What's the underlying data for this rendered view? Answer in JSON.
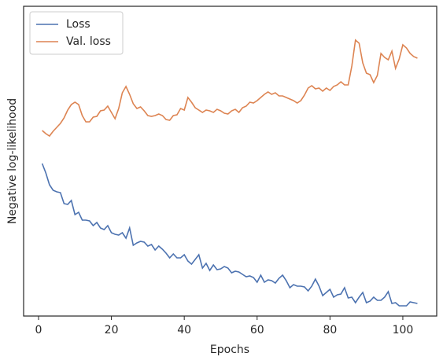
{
  "chart_data": {
    "type": "line",
    "x_label": "Epochs",
    "y_label": "Negative log-likelihood",
    "x": [
      1,
      2,
      3,
      4,
      5,
      6,
      7,
      8,
      9,
      10,
      11,
      12,
      13,
      14,
      15,
      16,
      17,
      18,
      19,
      20,
      21,
      22,
      23,
      24,
      25,
      26,
      27,
      28,
      29,
      30,
      31,
      32,
      33,
      34,
      35,
      36,
      37,
      38,
      39,
      40,
      41,
      42,
      43,
      44,
      45,
      46,
      47,
      48,
      49,
      50,
      51,
      52,
      53,
      54,
      55,
      56,
      57,
      58,
      59,
      60,
      61,
      62,
      63,
      64,
      65,
      66,
      67,
      68,
      69,
      70,
      71,
      72,
      73,
      74,
      75,
      76,
      77,
      78,
      79,
      80,
      81,
      82,
      83,
      84,
      85,
      86,
      87,
      88,
      89,
      90,
      91,
      92,
      93,
      94,
      95,
      96,
      97,
      98,
      99,
      100,
      101,
      102,
      103,
      104
    ],
    "series": [
      {
        "name": "Loss",
        "color": "#4c72b0",
        "values": [
          194,
          182,
          167,
          160,
          158,
          157,
          143,
          142,
          147,
          129,
          132,
          122,
          122,
          121,
          115,
          119,
          112,
          110,
          115,
          106,
          104,
          103,
          106,
          99,
          112,
          90,
          93,
          95,
          94,
          89,
          91,
          84,
          89,
          85,
          80,
          74,
          79,
          74,
          74,
          78,
          70,
          66,
          72,
          78,
          61,
          67,
          58,
          65,
          59,
          60,
          63,
          61,
          55,
          57,
          56,
          53,
          50,
          51,
          49,
          43,
          52,
          43,
          46,
          45,
          42,
          48,
          52,
          45,
          36,
          40,
          38,
          38,
          37,
          32,
          38,
          47,
          38,
          26,
          30,
          34,
          24,
          27,
          28,
          36,
          23,
          24,
          17,
          24,
          30,
          17,
          19,
          24,
          20,
          20,
          24,
          31,
          16,
          17,
          13,
          13,
          13,
          18,
          17,
          16
        ]
      },
      {
        "name": "Val. loss",
        "color": "#dd8452",
        "values": [
          236,
          232,
          229,
          235,
          240,
          245,
          252,
          262,
          269,
          272,
          269,
          255,
          247,
          247,
          253,
          254,
          261,
          262,
          267,
          259,
          251,
          264,
          284,
          292,
          282,
          270,
          264,
          266,
          261,
          255,
          254,
          255,
          257,
          255,
          250,
          249,
          255,
          256,
          264,
          262,
          278,
          272,
          265,
          262,
          259,
          262,
          261,
          259,
          263,
          261,
          258,
          257,
          261,
          263,
          259,
          265,
          267,
          272,
          271,
          274,
          278,
          282,
          285,
          282,
          284,
          280,
          280,
          278,
          276,
          274,
          271,
          274,
          281,
          290,
          293,
          289,
          290,
          286,
          290,
          287,
          292,
          294,
          298,
          294,
          294,
          318,
          351,
          347,
          322,
          309,
          307,
          297,
          306,
          334,
          329,
          326,
          337,
          315,
          327,
          345,
          341,
          334,
          330,
          328
        ]
      }
    ],
    "xlim": [
      -4.1,
      109.3
    ],
    "xticks": [
      0,
      20,
      40,
      60,
      80,
      100
    ],
    "ylim": [
      0,
      394
    ],
    "legend": "upper left",
    "grid": false
  }
}
